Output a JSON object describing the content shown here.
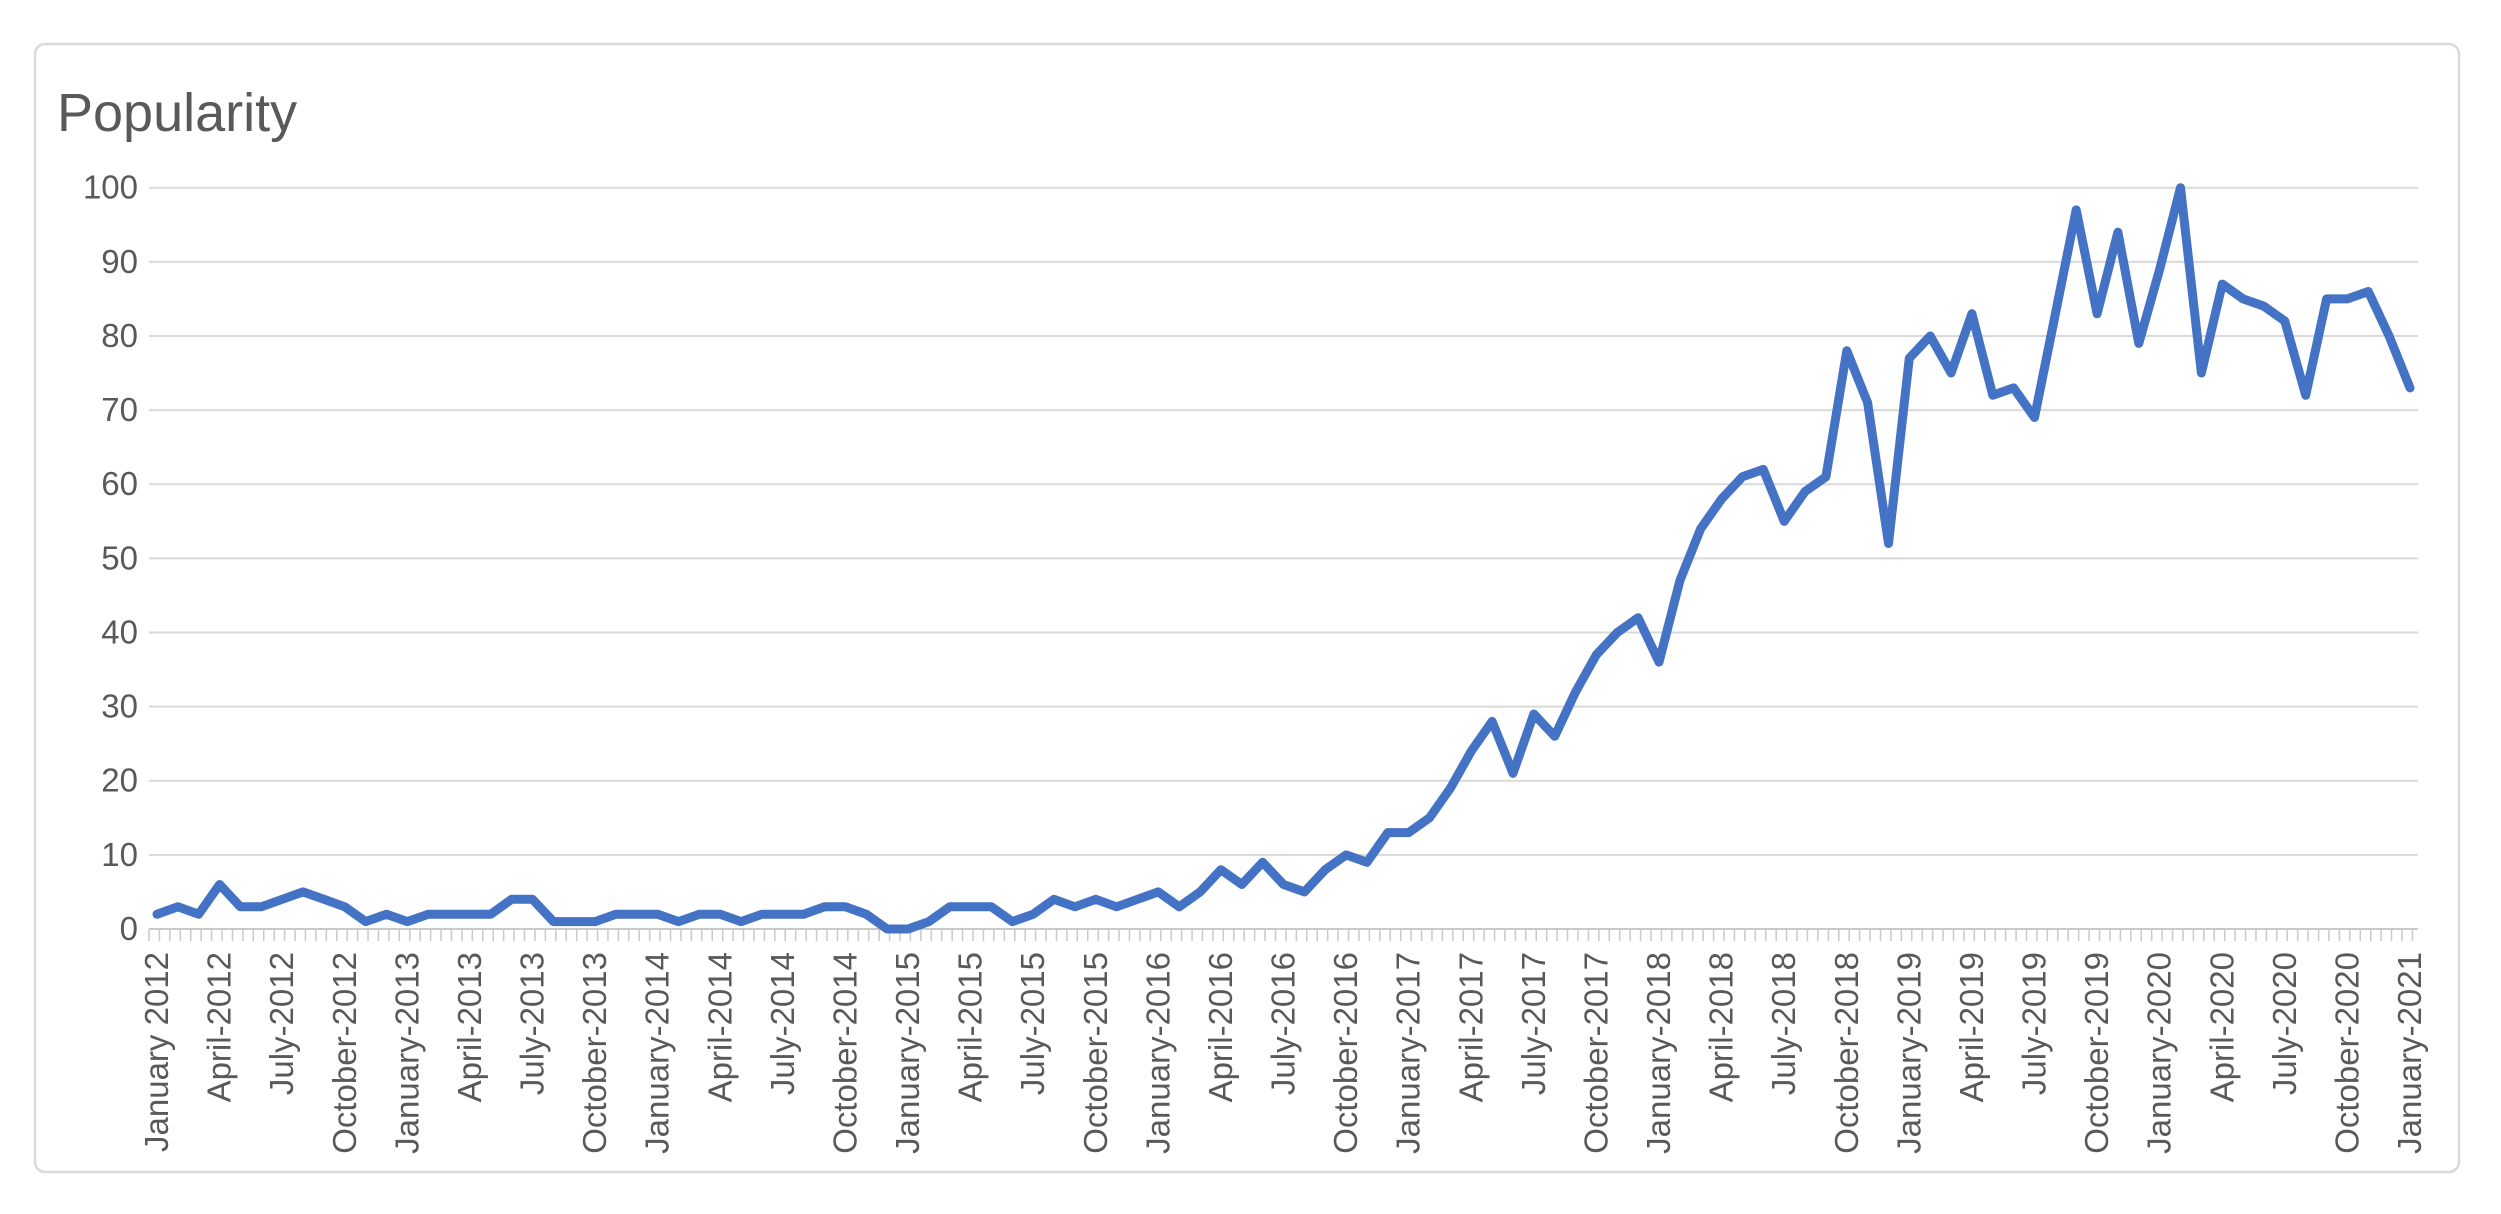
{
  "colors": {
    "line": "#4472C4",
    "gridline": "#D9D9D9",
    "axis_line": "#C9C9C9",
    "tick": "#C9C9C9",
    "text": "#595959",
    "chart_border": "#D9D9D9",
    "background": "#FFFFFF"
  },
  "chart_data": {
    "type": "line",
    "title": "Popularity",
    "xlabel": "",
    "ylabel": "",
    "frequency": "monthly",
    "start_month": "January 2012",
    "end_month": "January 2021",
    "ylim": [
      0,
      100
    ],
    "y_ticks": [
      0,
      10,
      20,
      30,
      40,
      50,
      60,
      70,
      80,
      90,
      100
    ],
    "grid": "horizontal",
    "legend": "none",
    "x_tick_labels": [
      "January 2012",
      "April-2012",
      "July-2012",
      "October-2012",
      "January-2013",
      "April-2013",
      "July-2013",
      "October-2013",
      "January-2014",
      "April-2014",
      "July-2014",
      "October-2014",
      "January-2015",
      "April-2015",
      "July-2015",
      "October-2015",
      "January-2016",
      "April-2016",
      "July-2016",
      "October-2016",
      "January-2017",
      "April-2017",
      "July-2017",
      "October-2017",
      "January-2018",
      "April-2018",
      "July-2018",
      "October-2018",
      "January-2019",
      "April-2019",
      "July-2019",
      "October-2019",
      "January-2020",
      "April-2020",
      "July-2020",
      "October-2020",
      "January-2021"
    ],
    "values": [
      2,
      3,
      2,
      6,
      3,
      3,
      4,
      5,
      4,
      3,
      1,
      2,
      1,
      2,
      2,
      2,
      2,
      4,
      4,
      1,
      1,
      1,
      2,
      2,
      2,
      1,
      2,
      2,
      1,
      2,
      2,
      2,
      3,
      3,
      2,
      0,
      0,
      1,
      3,
      3,
      3,
      1,
      2,
      4,
      3,
      4,
      3,
      4,
      5,
      3,
      5,
      8,
      6,
      9,
      6,
      5,
      8,
      10,
      9,
      13,
      13,
      15,
      19,
      24,
      28,
      21,
      29,
      26,
      32,
      37,
      40,
      42,
      36,
      47,
      54,
      58,
      61,
      62,
      55,
      59,
      61,
      78,
      71,
      52,
      77,
      80,
      75,
      83,
      72,
      73,
      69,
      83,
      97,
      83,
      94,
      79,
      89,
      100,
      75,
      87,
      85,
      84,
      82,
      72,
      85,
      85,
      86,
      80,
      73
    ]
  }
}
